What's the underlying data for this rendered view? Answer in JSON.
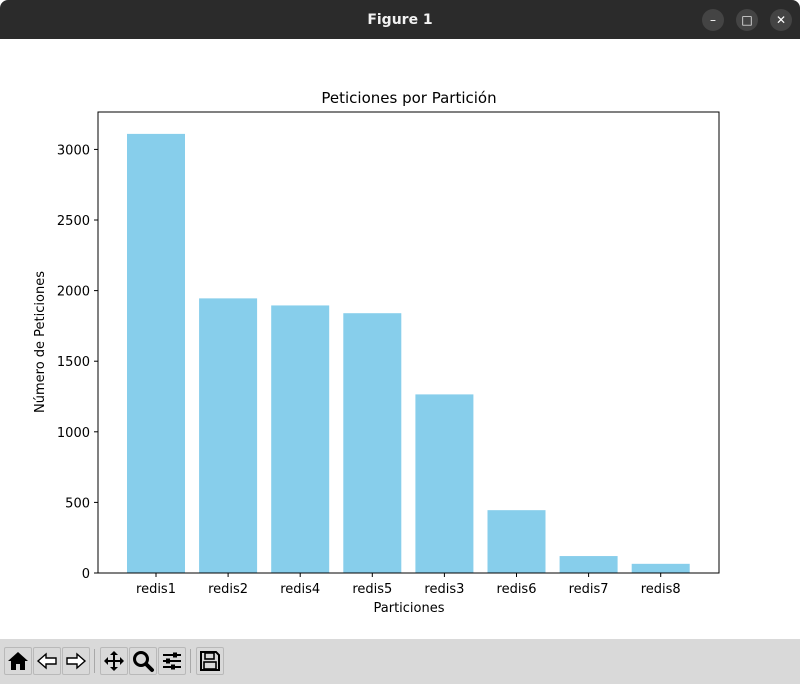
{
  "window": {
    "title": "Figure 1",
    "controls": {
      "minimize": "–",
      "maximize": "□",
      "close": "✕"
    }
  },
  "toolbar": {
    "buttons": [
      {
        "name": "home",
        "icon": "home-icon"
      },
      {
        "name": "back",
        "icon": "arrow-left-icon"
      },
      {
        "name": "forward",
        "icon": "arrow-right-icon"
      },
      {
        "name": "pan",
        "icon": "move-icon"
      },
      {
        "name": "zoom",
        "icon": "magnifier-icon"
      },
      {
        "name": "configure-subplots",
        "icon": "sliders-icon"
      },
      {
        "name": "save",
        "icon": "floppy-disk-icon"
      }
    ]
  },
  "chart_data": {
    "type": "bar",
    "title": "Peticiones por Partición",
    "xlabel": "Particiones",
    "ylabel": "Número de Peticiones",
    "categories": [
      "redis1",
      "redis2",
      "redis4",
      "redis5",
      "redis3",
      "redis6",
      "redis7",
      "redis8"
    ],
    "values": [
      3110,
      1945,
      1895,
      1840,
      1265,
      445,
      120,
      65
    ],
    "ylim": [
      0,
      3265
    ],
    "yticks": [
      0,
      500,
      1000,
      1500,
      2000,
      2500,
      3000
    ],
    "bar_color": "#87ceeb",
    "grid": false
  }
}
